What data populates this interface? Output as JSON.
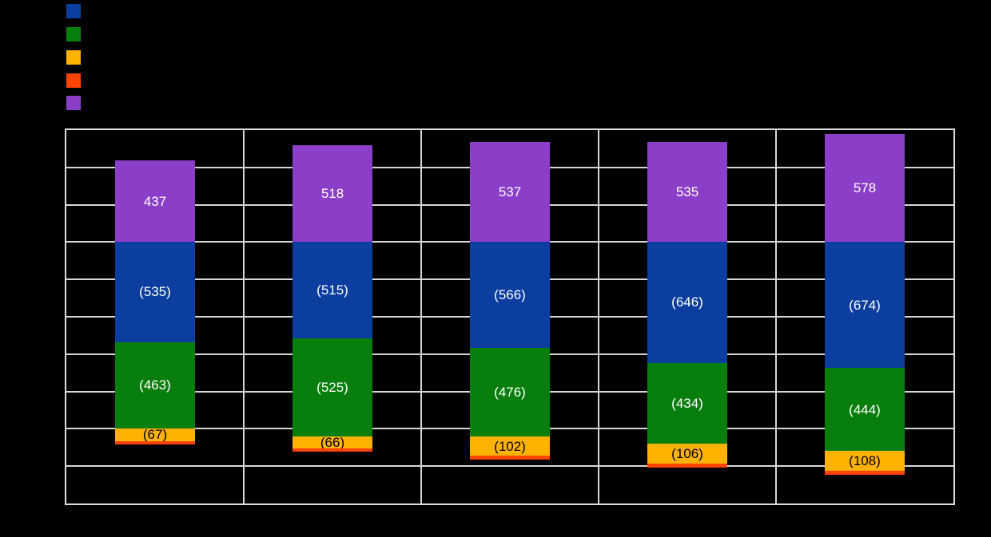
{
  "background_color": "#000000",
  "legend": {
    "position": "top-left",
    "items": [
      {
        "name": "series-blue",
        "label": "",
        "color": "#0B3E9E"
      },
      {
        "name": "series-green",
        "label": "",
        "color": "#087F0C"
      },
      {
        "name": "series-yellow",
        "label": "",
        "color": "#FFB200"
      },
      {
        "name": "series-red",
        "label": "",
        "color": "#FF4300"
      },
      {
        "name": "series-purple",
        "label": "",
        "color": "#8B3FC8"
      }
    ],
    "note": "legend label text is rendered black on black background and is not legible"
  },
  "chart_data": {
    "type": "bar",
    "stacked": true,
    "title": "",
    "xlabel": "",
    "ylabel": "",
    "categories": [
      "",
      "",
      "",
      "",
      ""
    ],
    "ylim": [
      -1400,
      600
    ],
    "ytick_step": 200,
    "grid": true,
    "legend_position": "top-left",
    "tick_labels_visible": false,
    "series": [
      {
        "name": "blue",
        "color": "#0B3E9E",
        "values": [
          -535,
          -515,
          -566,
          -646,
          -674
        ],
        "labels": [
          "(535)",
          "(515)",
          "(566)",
          "(646)",
          "(674)"
        ],
        "label_color": "#FFFFFF"
      },
      {
        "name": "green",
        "color": "#087F0C",
        "values": [
          -463,
          -525,
          -476,
          -434,
          -444
        ],
        "labels": [
          "(463)",
          "(525)",
          "(476)",
          "(434)",
          "(444)"
        ],
        "label_color": "#FFFFFF"
      },
      {
        "name": "yellow",
        "color": "#FFB200",
        "values": [
          -67,
          -66,
          -102,
          -106,
          -108
        ],
        "labels": [
          "(67)",
          "(66)",
          "(102)",
          "(106)",
          "(108)"
        ],
        "label_color": "#000000"
      },
      {
        "name": "red",
        "color": "#FF4300",
        "values": [
          -18,
          -18,
          -20,
          -22,
          -22
        ],
        "labels": [
          "",
          "",
          "",
          "",
          ""
        ],
        "label_color": "#000000",
        "values_estimated_from_pixels": true
      },
      {
        "name": "purple",
        "color": "#8B3FC8",
        "values": [
          437,
          518,
          537,
          535,
          578
        ],
        "labels": [
          "437",
          "518",
          "537",
          "535",
          "578"
        ],
        "label_color": "#FFFFFF"
      }
    ]
  },
  "plot_style": {
    "grid_color": "#D6D6D6",
    "border_color": "#DCDCDC"
  }
}
